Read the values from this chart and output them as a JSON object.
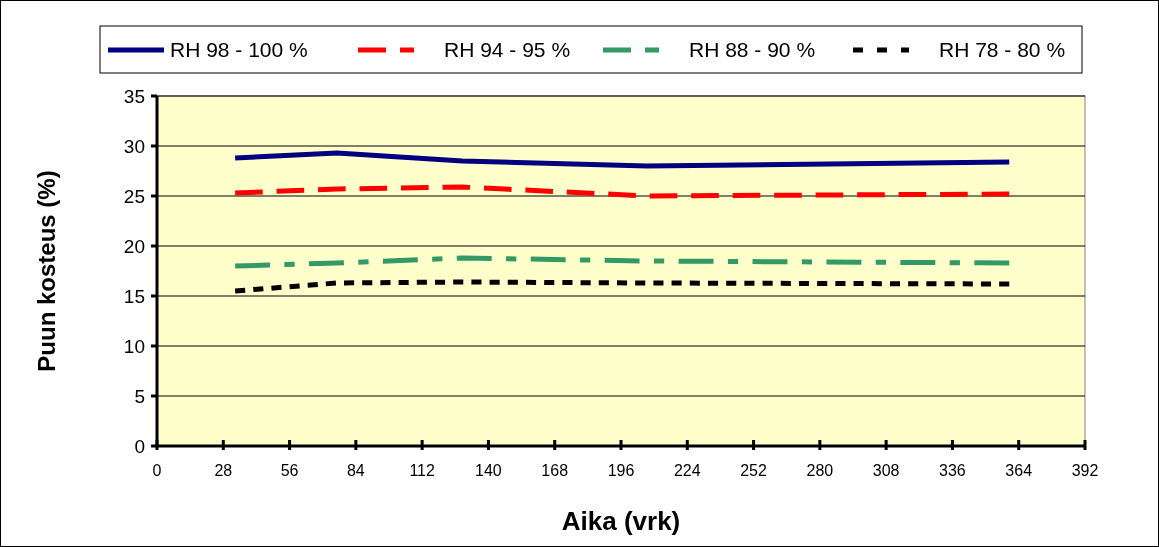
{
  "chart_data": {
    "type": "line",
    "xlabel": "Aika (vrk)",
    "ylabel": "Puun kosteus (%)",
    "x": [
      33,
      76,
      129,
      207,
      360
    ],
    "xlim": [
      0,
      392
    ],
    "xticks": [
      0,
      28,
      56,
      84,
      112,
      140,
      168,
      196,
      224,
      252,
      280,
      308,
      336,
      364,
      392
    ],
    "ylim": [
      0,
      35
    ],
    "yticks": [
      0,
      5,
      10,
      15,
      20,
      25,
      30,
      35
    ],
    "grid": "y",
    "legend": "top",
    "marker": "none",
    "series": [
      {
        "name": "RH 98 - 100 %",
        "color": "#000080",
        "line_style": "solid",
        "values": [
          28.8,
          29.3,
          28.5,
          28.0,
          28.4
        ]
      },
      {
        "name": "RH 94 - 95 %",
        "color": "#ff0000",
        "line_style": "dashed",
        "values": [
          25.3,
          25.7,
          25.9,
          25.0,
          25.2
        ]
      },
      {
        "name": "RH 88 - 90 %",
        "color": "#339966",
        "line_style": "dashdot",
        "values": [
          18.0,
          18.3,
          18.8,
          18.5,
          18.3
        ]
      },
      {
        "name": "RH 78 - 80 %",
        "color": "#000000",
        "line_style": "dotted",
        "values": [
          15.5,
          16.3,
          16.4,
          16.3,
          16.2
        ]
      }
    ]
  }
}
